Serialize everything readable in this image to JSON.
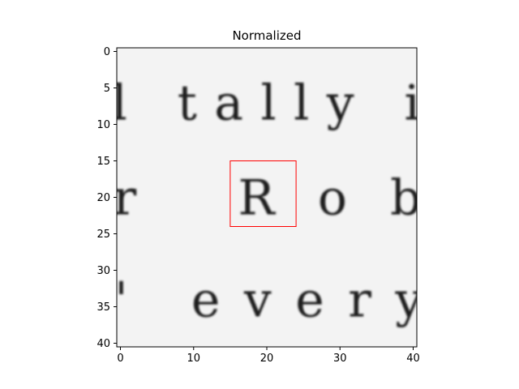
{
  "chart_data": {
    "type": "heatmap",
    "title": "Normalized",
    "xlabel": "",
    "ylabel": "",
    "colormap": "gray",
    "grid": false,
    "xlim": [
      -0.5,
      40.5
    ],
    "ylim": [
      40.5,
      -0.5
    ],
    "xticks": [
      0,
      10,
      20,
      30,
      40
    ],
    "yticks": [
      0,
      5,
      10,
      15,
      20,
      25,
      30,
      35,
      40
    ],
    "image_text_rows": [
      {
        "text": "l tally i",
        "y_center": 7
      },
      {
        "text": "r Rob",
        "y_center": 20
      },
      {
        "text": "' every",
        "y_center": 34
      }
    ],
    "highlight_box": {
      "x_range": [
        15,
        24
      ],
      "y_range": [
        15,
        24
      ],
      "color": "#ff0000"
    }
  }
}
